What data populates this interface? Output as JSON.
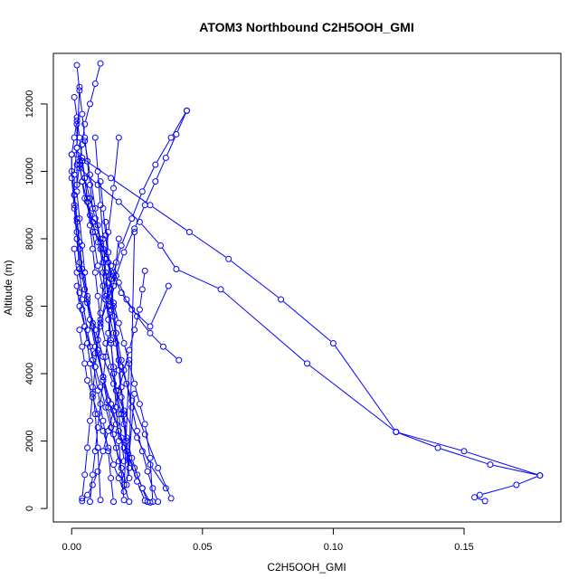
{
  "chart_data": {
    "type": "line",
    "title": "ATOM3 Northbound C2H5OOH_GMI",
    "xlabel": "C2H5OOH_GMI",
    "ylabel": "Altitude (m)",
    "xlim": [
      -0.007,
      0.187
    ],
    "ylim": [
      -400,
      13500
    ],
    "x_ticks": [
      0.0,
      0.05,
      0.1,
      0.15
    ],
    "x_tick_labels": [
      "0.00",
      "0.05",
      "0.10",
      "0.15"
    ],
    "y_ticks": [
      0,
      2000,
      4000,
      6000,
      8000,
      10000,
      12000
    ],
    "y_tick_labels": [
      "0",
      "2000",
      "4000",
      "6000",
      "8000",
      "10000",
      "12000"
    ],
    "grid": false,
    "legend": "none",
    "marker": "open-circle",
    "color": "#0000ff",
    "series": [
      {
        "x": [
          0.03,
          0.027,
          0.024,
          0.02,
          0.017,
          0.014,
          0.012,
          0.01,
          0.008,
          0.006,
          0.004,
          0.003,
          0.002,
          0.001,
          0.0,
          0.0,
          0.001,
          0.002
        ],
        "y": [
          180,
          600,
          1200,
          1800,
          2500,
          3200,
          3900,
          4700,
          5500,
          6300,
          7100,
          7900,
          8600,
          9300,
          10000,
          10500,
          11000,
          11500
        ]
      },
      {
        "x": [
          0.028,
          0.025,
          0.022,
          0.018,
          0.015,
          0.012,
          0.009,
          0.007,
          0.005,
          0.003,
          0.002,
          0.001,
          0.001,
          0.002,
          0.003
        ],
        "y": [
          230,
          800,
          1500,
          2300,
          3100,
          3900,
          4800,
          5600,
          6500,
          7300,
          8200,
          9000,
          9900,
          10700,
          12500
        ]
      },
      {
        "x": [
          0.016,
          0.015,
          0.014,
          0.012,
          0.01,
          0.008,
          0.006,
          0.004,
          0.003,
          0.002,
          0.001,
          0.0,
          0.0
        ],
        "y": [
          200,
          900,
          1700,
          2600,
          3500,
          4400,
          5300,
          6200,
          7100,
          8000,
          8900,
          9800,
          10500
        ]
      },
      {
        "x": [
          0.022,
          0.02,
          0.018,
          0.016,
          0.014,
          0.012,
          0.01,
          0.008,
          0.006,
          0.005,
          0.004,
          0.003,
          0.002,
          0.002
        ],
        "y": [
          200,
          700,
          1400,
          2200,
          3000,
          3800,
          4600,
          5400,
          6200,
          7000,
          7800,
          8600,
          9400,
          10200
        ]
      },
      {
        "x": [
          0.004,
          0.005,
          0.006,
          0.007,
          0.008,
          0.009,
          0.01,
          0.011,
          0.012,
          0.013,
          0.014,
          0.016,
          0.018
        ],
        "y": [
          300,
          1000,
          1800,
          2600,
          3400,
          4200,
          5000,
          5800,
          6600,
          7400,
          8200,
          9500,
          11000
        ]
      },
      {
        "x": [
          0.036,
          0.03,
          0.025,
          0.02,
          0.016,
          0.012,
          0.009,
          0.006,
          0.004,
          0.003,
          0.002,
          0.001
        ],
        "y": [
          600,
          1300,
          2100,
          2900,
          3700,
          4500,
          5300,
          6100,
          6900,
          7700,
          8500,
          9300
        ]
      },
      {
        "x": [
          0.041,
          0.035,
          0.03,
          0.025,
          0.021,
          0.018,
          0.015,
          0.012,
          0.009,
          0.007,
          0.005,
          0.004,
          0.003,
          0.002,
          0.002
        ],
        "y": [
          4400,
          4800,
          5200,
          5700,
          6200,
          6700,
          7200,
          7700,
          8200,
          8700,
          9200,
          9700,
          10200,
          10700,
          11400
        ]
      },
      {
        "x": [
          0.038,
          0.033,
          0.028,
          0.023,
          0.019,
          0.016,
          0.013,
          0.01,
          0.008,
          0.006,
          0.004
        ],
        "y": [
          300,
          1200,
          2200,
          3200,
          4200,
          5200,
          6200,
          7200,
          8200,
          9200,
          10300
        ]
      },
      {
        "x": [
          0.001,
          0.002,
          0.003,
          0.004,
          0.005,
          0.007,
          0.009,
          0.011,
          0.013,
          0.016,
          0.019,
          0.023,
          0.03,
          0.037
        ],
        "y": [
          12200,
          11600,
          11000,
          10400,
          9800,
          9200,
          8600,
          8000,
          7400,
          6900,
          6400,
          5900,
          5400,
          6600
        ]
      },
      {
        "x": [
          0.044,
          0.04,
          0.036,
          0.032,
          0.028,
          0.024,
          0.02,
          0.017,
          0.014,
          0.011
        ],
        "y": [
          11800,
          11100,
          10400,
          9700,
          9000,
          8300,
          7600,
          6900,
          6200,
          5500
        ]
      },
      {
        "x": [
          0.044,
          0.038,
          0.032,
          0.027,
          0.023,
          0.019,
          0.016,
          0.013,
          0.011,
          0.009
        ],
        "y": [
          11800,
          11000,
          10200,
          9400,
          8600,
          7800,
          7000,
          6200,
          5400,
          4600
        ]
      },
      {
        "x": [
          0.011,
          0.009,
          0.007,
          0.005,
          0.004,
          0.003,
          0.002
        ],
        "y": [
          13200,
          12600,
          12000,
          11400,
          10800,
          10200,
          9600
        ]
      },
      {
        "x": [
          0.002,
          0.003,
          0.004,
          0.005,
          0.006,
          0.007,
          0.008
        ],
        "y": [
          13150,
          12400,
          11700,
          11000,
          10300,
          9600,
          8900
        ]
      },
      {
        "x": [
          0.003,
          0.01,
          0.018,
          0.026,
          0.034,
          0.04,
          0.057,
          0.09,
          0.124,
          0.15,
          0.179,
          0.17,
          0.156,
          0.154,
          0.158
        ],
        "y": [
          10100,
          9600,
          9100,
          8500,
          7800,
          7100,
          6500,
          4300,
          2270,
          1700,
          980,
          700,
          400,
          330,
          220
        ]
      },
      {
        "x": [
          0.002,
          0.015,
          0.03,
          0.045,
          0.06,
          0.08,
          0.1,
          0.124,
          0.14,
          0.16,
          0.179
        ],
        "y": [
          10500,
          9800,
          9000,
          8200,
          7400,
          6200,
          4900,
          2270,
          1800,
          1300,
          980
        ]
      },
      {
        "x": [
          0.005,
          0.007,
          0.009,
          0.011,
          0.013,
          0.015,
          0.017,
          0.019,
          0.021,
          0.023,
          0.025,
          0.027,
          0.029,
          0.031,
          0.033
        ],
        "y": [
          10900,
          9900,
          8900,
          7900,
          6900,
          6000,
          5200,
          4400,
          3700,
          3000,
          2300,
          1700,
          1100,
          600,
          200
        ]
      },
      {
        "x": [
          0.009,
          0.01,
          0.011,
          0.012,
          0.013,
          0.014,
          0.015,
          0.016,
          0.017,
          0.018,
          0.019,
          0.02
        ],
        "y": [
          11000,
          10000,
          9000,
          8000,
          7000,
          6000,
          5000,
          4000,
          3000,
          2000,
          1000,
          250
        ]
      },
      {
        "x": [
          0.001,
          0.002,
          0.003,
          0.004,
          0.005,
          0.006,
          0.007,
          0.008,
          0.009,
          0.01,
          0.011
        ],
        "y": [
          7700,
          7000,
          6400,
          5900,
          5400,
          4900,
          4300,
          3600,
          2800,
          1800,
          250
        ]
      },
      {
        "x": [
          0.002,
          0.003,
          0.005,
          0.007,
          0.009,
          0.011,
          0.013,
          0.015,
          0.017,
          0.019,
          0.021,
          0.024
        ],
        "y": [
          6600,
          6000,
          5400,
          4800,
          4200,
          3600,
          3000,
          2400,
          1800,
          1200,
          700,
          3400
        ]
      },
      {
        "x": [
          0.003,
          0.004,
          0.005,
          0.006,
          0.008,
          0.01,
          0.012,
          0.014,
          0.016,
          0.018,
          0.02,
          0.022
        ],
        "y": [
          5300,
          4800,
          4300,
          3800,
          3300,
          2800,
          2300,
          1800,
          1300,
          900,
          500,
          4400
        ]
      },
      {
        "x": [
          0.013,
          0.014,
          0.015,
          0.016,
          0.017,
          0.018,
          0.019,
          0.02,
          0.021,
          0.022,
          0.024
        ],
        "y": [
          8500,
          7600,
          6800,
          6000,
          5200,
          4400,
          3600,
          2800,
          2000,
          1200,
          8200
        ]
      },
      {
        "x": [
          0.028,
          0.027,
          0.026,
          0.024,
          0.022,
          0.02,
          0.018,
          0.016,
          0.014,
          0.012,
          0.01,
          0.008,
          0.006,
          0.004
        ],
        "y": [
          7050,
          6500,
          5900,
          5300,
          4700,
          4100,
          3500,
          2900,
          2300,
          1700,
          1100,
          700,
          400,
          220
        ]
      },
      {
        "x": [
          0.018,
          0.017,
          0.016,
          0.015,
          0.014,
          0.013,
          0.012,
          0.011,
          0.01,
          0.009,
          0.008,
          0.007
        ],
        "y": [
          8000,
          7300,
          6600,
          5900,
          5200,
          4500,
          3800,
          3100,
          2400,
          1700,
          1000,
          200
        ]
      },
      {
        "x": [
          0.011,
          0.012,
          0.013,
          0.014,
          0.015,
          0.016,
          0.017,
          0.018,
          0.019,
          0.02,
          0.021,
          0.022
        ],
        "y": [
          9700,
          8900,
          8100,
          7300,
          6500,
          5700,
          4900,
          4100,
          3300,
          2500,
          1700,
          900
        ]
      },
      {
        "x": [
          0.01,
          0.011,
          0.012,
          0.013,
          0.014,
          0.015,
          0.016,
          0.017,
          0.018,
          0.019,
          0.02
        ],
        "y": [
          8400,
          7700,
          7000,
          6300,
          5600,
          4900,
          4200,
          3500,
          2800,
          2100,
          1400
        ]
      },
      {
        "x": [
          0.005,
          0.006,
          0.007,
          0.008,
          0.009,
          0.01,
          0.011,
          0.013,
          0.015,
          0.017,
          0.019,
          0.021,
          0.023,
          0.025,
          0.027,
          0.029
        ],
        "y": [
          9800,
          9100,
          8400,
          7700,
          7000,
          6300,
          5600,
          4900,
          4200,
          3500,
          2800,
          2100,
          1500,
          1000,
          600,
          200
        ]
      },
      {
        "x": [
          0.003,
          0.004,
          0.006,
          0.008,
          0.01,
          0.012,
          0.014,
          0.016,
          0.018,
          0.02,
          0.022,
          0.024,
          0.026,
          0.028,
          0.03,
          0.031
        ],
        "y": [
          10300,
          9700,
          9100,
          8500,
          7900,
          7300,
          6700,
          6100,
          5500,
          4900,
          4300,
          3700,
          3100,
          2500,
          1500,
          200
        ]
      }
    ]
  }
}
